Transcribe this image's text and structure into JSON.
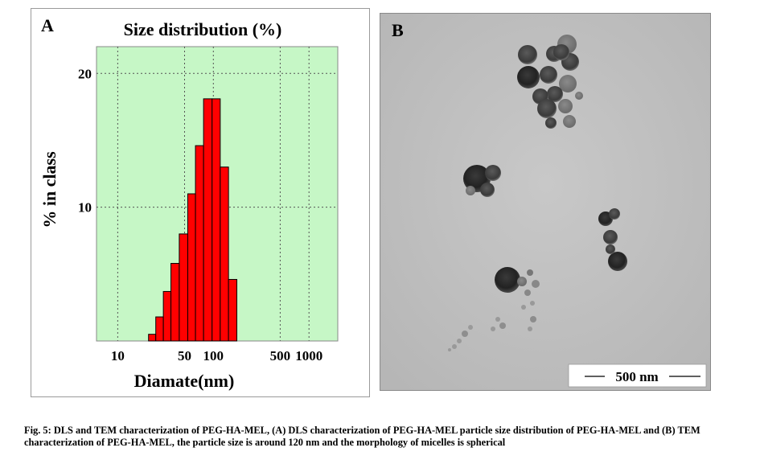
{
  "panel_a": {
    "letter": "A",
    "chart_data": {
      "type": "bar",
      "title": "Size distribution (%)",
      "xlabel": "Diamate(nm)",
      "ylabel": "% in class",
      "x_scale": "log",
      "xlim": [
        6,
        2000
      ],
      "ylim": [
        0,
        22
      ],
      "x_ticks": [
        10,
        50,
        100,
        500,
        1000
      ],
      "y_ticks": [
        10,
        20
      ],
      "grid": true,
      "background_color": "#c6f7c6",
      "bar_color": "#ff0000",
      "bins": [
        {
          "from": 21,
          "to": 25,
          "value": 0.5
        },
        {
          "from": 25,
          "to": 30,
          "value": 1.8
        },
        {
          "from": 30,
          "to": 36,
          "value": 3.7
        },
        {
          "from": 36,
          "to": 44,
          "value": 5.8
        },
        {
          "from": 44,
          "to": 54,
          "value": 8.0
        },
        {
          "from": 54,
          "to": 65,
          "value": 11.0
        },
        {
          "from": 65,
          "to": 79,
          "value": 14.6
        },
        {
          "from": 79,
          "to": 97,
          "value": 18.1
        },
        {
          "from": 97,
          "to": 118,
          "value": 18.1
        },
        {
          "from": 118,
          "to": 144,
          "value": 13.0
        },
        {
          "from": 144,
          "to": 176,
          "value": 4.6
        }
      ]
    }
  },
  "panel_b": {
    "letter": "B",
    "scale_bar_label": "500 nm"
  },
  "caption": "Fig. 5: DLS and TEM characterization of PEG-HA-MEL, (A) DLS characterization of PEG-HA-MEL particle size distribution of PEG-HA-MEL and (B) TEM characterization of PEG-HA-MEL, the particle size is around 120 nm and the morphology of micelles is spherical"
}
